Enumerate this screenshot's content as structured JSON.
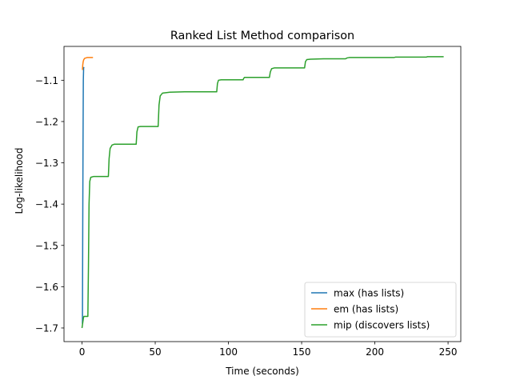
{
  "chart_data": {
    "type": "line",
    "title": "Ranked List Method comparison",
    "xlabel": "Time (seconds)",
    "ylabel": "Log-likelihood",
    "xlim": [
      -12.3,
      258.7
    ],
    "ylim": [
      -1.733,
      -1.018
    ],
    "xticks": [
      0,
      50,
      100,
      150,
      200,
      250
    ],
    "yticks": [
      -1.7,
      -1.6,
      -1.5,
      -1.4,
      -1.3,
      -1.2,
      -1.1
    ],
    "grid": false,
    "legend_position": "bottom-right",
    "series": [
      {
        "name": "max (has lists)",
        "color": "#1f77b4",
        "x": [
          0.3,
          0.5,
          0.7,
          0.9,
          1.1,
          1.4
        ],
        "y": [
          -1.69,
          -1.45,
          -1.25,
          -1.1,
          -1.07,
          -1.068
        ]
      },
      {
        "name": "em (has lists)",
        "color": "#ff7f0e",
        "x": [
          0.3,
          0.5,
          0.8,
          1.2,
          1.8,
          2.6,
          3.5,
          5.0,
          7.0,
          7.5
        ],
        "y": [
          -1.075,
          -1.063,
          -1.055,
          -1.05,
          -1.047,
          -1.046,
          -1.045,
          -1.045,
          -1.045,
          -1.045
        ]
      },
      {
        "name": "mip (discovers lists)",
        "color": "#2ca02c",
        "x": [
          0,
          0.4,
          0.8,
          1.0,
          1.3,
          4.0,
          4.4,
          4.8,
          5.3,
          6.0,
          8.0,
          18.0,
          18.5,
          19.2,
          20.5,
          22.0,
          25.0,
          37.0,
          37.5,
          38.3,
          40.0,
          52.0,
          52.6,
          53.4,
          55.0,
          60.0,
          70.0,
          92.0,
          92.5,
          93.2,
          95.0,
          100.0,
          110.0,
          110.5,
          111.0,
          112.5,
          128.0,
          128.6,
          129.5,
          131.5,
          135.0,
          152.0,
          152.6,
          153.5,
          156.0,
          165.0,
          180.0,
          181.0,
          182.5,
          213.0,
          214.0,
          215.5,
          235.0,
          236.0,
          237.5,
          247.0
        ],
        "y": [
          -1.7,
          -1.69,
          -1.68,
          -1.675,
          -1.672,
          -1.672,
          -1.55,
          -1.4,
          -1.345,
          -1.335,
          -1.333,
          -1.333,
          -1.29,
          -1.265,
          -1.257,
          -1.255,
          -1.255,
          -1.255,
          -1.225,
          -1.213,
          -1.212,
          -1.212,
          -1.16,
          -1.138,
          -1.131,
          -1.129,
          -1.128,
          -1.128,
          -1.108,
          -1.1,
          -1.099,
          -1.099,
          -1.099,
          -1.095,
          -1.093,
          -1.093,
          -1.093,
          -1.08,
          -1.072,
          -1.07,
          -1.07,
          -1.07,
          -1.055,
          -1.05,
          -1.049,
          -1.048,
          -1.048,
          -1.046,
          -1.045,
          -1.045,
          -1.044,
          -1.044,
          -1.044,
          -1.043,
          -1.043,
          -1.043
        ]
      }
    ]
  }
}
